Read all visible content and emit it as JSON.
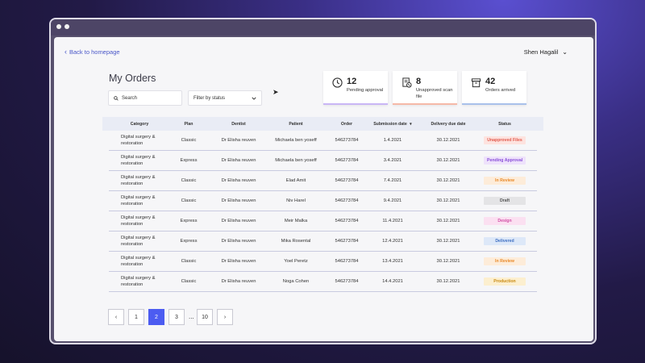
{
  "nav": {
    "back_label": "Back to homepage",
    "user_name": "Shen Hagalil"
  },
  "page_title": "My Orders",
  "search": {
    "placeholder": "Search"
  },
  "filter": {
    "label": "Filter by status"
  },
  "stats": [
    {
      "value": "12",
      "label": "Pending approval",
      "icon": "clock-icon",
      "accent": "#c9b6f5"
    },
    {
      "value": "8",
      "label": "Unapproved scan file",
      "icon": "document-scan-icon",
      "accent": "#f5b9a8"
    },
    {
      "value": "42",
      "label": "Orders arrived",
      "icon": "archive-box-icon",
      "accent": "#a9c1ea"
    }
  ],
  "table": {
    "headers": [
      "Category",
      "Plan",
      "Dentist",
      "Patient",
      "Order",
      "Submission date",
      "Delivery due date",
      "Status"
    ],
    "sorted_column": "Submission date",
    "rows": [
      {
        "category": "Digital surgery  &  restoration",
        "plan": "Classic",
        "dentist": "Dr Elisha reuven",
        "patient": "Michaela ben yoseff",
        "order": "546273784",
        "submission": "1.4.2021",
        "due": "30.12.2021",
        "status": "Unapproved Files",
        "status_color": "#e25b4e",
        "status_bg": "#fde3df"
      },
      {
        "category": "Digital surgery  &  restoration",
        "plan": "Express",
        "dentist": "Dr Elisha reuven",
        "patient": "Michaela ben yoseff",
        "order": "546273784",
        "submission": "3.4.2021",
        "due": "30.12.2021",
        "status": "Pending Approval",
        "status_color": "#8a4fd8",
        "status_bg": "#eee2fb"
      },
      {
        "category": "Digital surgery  &  restoration",
        "plan": "Classic",
        "dentist": "Dr Elisha reuven",
        "patient": "Elad Amit",
        "order": "546273784",
        "submission": "7.4.2021",
        "due": "30.12.2021",
        "status": "In Review",
        "status_color": "#e98a2a",
        "status_bg": "#fdecd9"
      },
      {
        "category": "Digital surgery  &  restoration",
        "plan": "Classic",
        "dentist": "Dr Elisha reuven",
        "patient": "Niv Harel",
        "order": "546273784",
        "submission": "9.4.2021",
        "due": "30.12.2021",
        "status": "Draft",
        "status_color": "#555555",
        "status_bg": "#e4e4e6"
      },
      {
        "category": "Digital surgery  &  restoration",
        "plan": "Express",
        "dentist": "Dr Elisha reuven",
        "patient": "Meir Malka",
        "order": "546273784",
        "submission": "11.4.2021",
        "due": "30.12.2021",
        "status": "Design",
        "status_color": "#d24fa6",
        "status_bg": "#fbe0f1"
      },
      {
        "category": "Digital surgery  &  restoration",
        "plan": "Express",
        "dentist": "Dr Elisha reuven",
        "patient": "Mika Rosental",
        "order": "546273784",
        "submission": "12.4.2021",
        "due": "30.12.2021",
        "status": "Delivered",
        "status_color": "#3f6fc2",
        "status_bg": "#dde8f8"
      },
      {
        "category": "Digital surgery  &  restoration",
        "plan": "Classic",
        "dentist": "Dr Elisha reuven",
        "patient": "Yoel Peretz",
        "order": "546273784",
        "submission": "13.4.2021",
        "due": "30.12.2021",
        "status": "In Review",
        "status_color": "#e98a2a",
        "status_bg": "#fdecd9"
      },
      {
        "category": "Digital surgery  &  restoration",
        "plan": "Classic",
        "dentist": "Dr Elisha reuven",
        "patient": "Noga Cohen",
        "order": "546273784",
        "submission": "14.4.2021",
        "due": "30.12.2021",
        "status": "Production",
        "status_color": "#c98a12",
        "status_bg": "#fcefcf"
      }
    ]
  },
  "pagination": {
    "prev": "‹",
    "pages": [
      "1",
      "2",
      "3"
    ],
    "ellipsis": "...",
    "last": "10",
    "next": "›",
    "current": "2"
  }
}
